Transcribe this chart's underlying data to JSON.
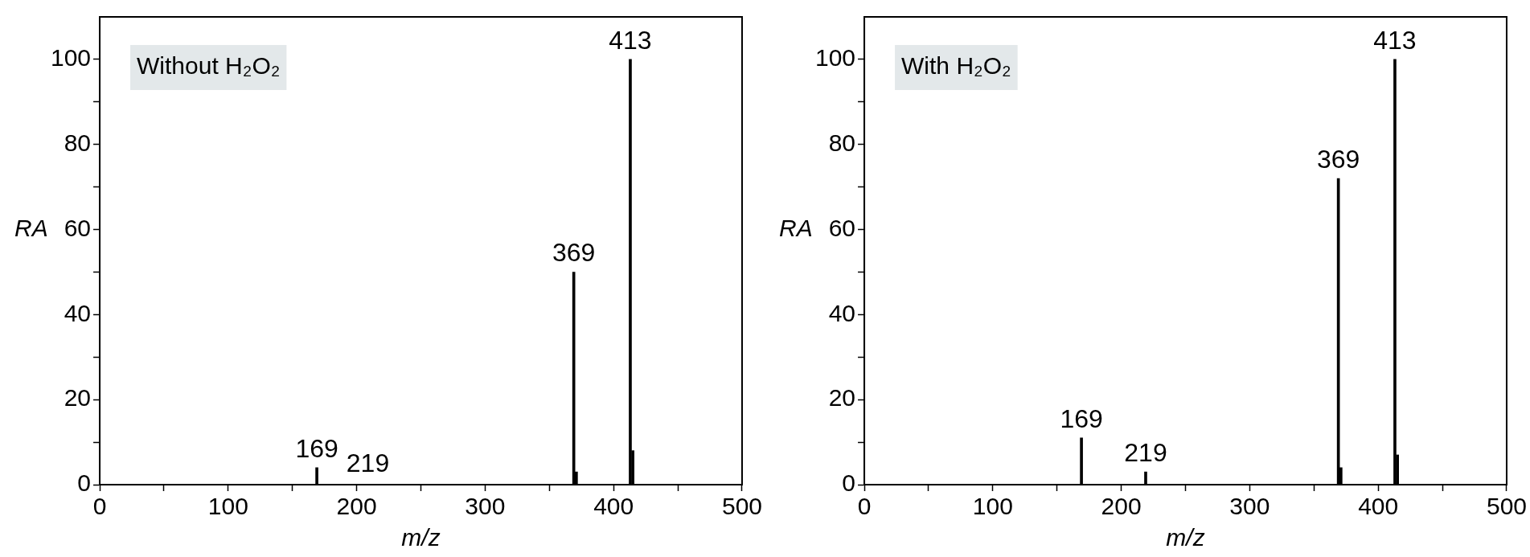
{
  "chart_data": [
    {
      "type": "bar",
      "title": "Without H₂O₂",
      "xlabel": "m/z",
      "ylabel": "RA",
      "x": [
        169,
        369,
        371,
        413,
        415
      ],
      "series": [
        {
          "color": "#000000",
          "values": [
            4,
            50,
            3,
            100,
            8
          ]
        }
      ],
      "annotations": [
        {
          "text": "169",
          "x": 169,
          "y": 4
        },
        "219",
        {
          "text": "369",
          "x": 369,
          "y": 50
        },
        {
          "text": "413",
          "x": 413,
          "y": 100
        }
      ],
      "xlim": [
        0,
        500
      ],
      "xticks": [
        0,
        {
          "value": 50,
          "label": null
        },
        100,
        {
          "value": 150,
          "label": null
        },
        200,
        {
          "value": 250,
          "label": null
        },
        300,
        {
          "value": 350,
          "label": null
        },
        400,
        {
          "value": 450,
          "label": null
        },
        500
      ],
      "ylim": [
        0,
        110
      ],
      "yticks": [
        0,
        {
          "value": 10,
          "label": null
        },
        20,
        {
          "value": 30,
          "label": null
        },
        40,
        {
          "value": 50,
          "label": null
        },
        60,
        {
          "value": 70,
          "label": null
        },
        80,
        {
          "value": 90,
          "label": null
        },
        100
      ],
      "grid": false,
      "legend": false
    },
    {
      "type": "bar",
      "title": "With H₂O₂",
      "xlabel": "m/z",
      "ylabel": "RA",
      "x": [
        169,
        219,
        369,
        371,
        413,
        415
      ],
      "series": [
        {
          "color": "#000000",
          "values": [
            11,
            3,
            72,
            4,
            100,
            7
          ]
        }
      ],
      "annotations": [
        {
          "text": "169",
          "x": 169,
          "y": 11
        },
        {
          "text": "219",
          "x": 219,
          "y": 3
        },
        {
          "text": "369",
          "x": 369,
          "y": 72
        },
        {
          "text": "413",
          "x": 413,
          "y": 100
        }
      ],
      "xlim": [
        0,
        500
      ],
      "xticks": [
        0,
        {
          "value": 50,
          "label": null
        },
        100,
        {
          "value": 150,
          "label": null
        },
        200,
        {
          "value": 250,
          "label": null
        },
        300,
        {
          "value": 350,
          "label": null
        },
        400,
        {
          "value": 450,
          "label": null
        },
        500
      ],
      "ylim": [
        0,
        110
      ],
      "yticks": [
        0,
        {
          "value": 10,
          "label": null
        },
        20,
        {
          "value": 30,
          "label": null
        },
        40,
        {
          "value": 50,
          "label": null
        },
        60,
        {
          "value": 70,
          "label": null
        },
        80,
        {
          "value": 90,
          "label": null
        },
        100
      ],
      "grid": false,
      "legend": false
    }
  ]
}
